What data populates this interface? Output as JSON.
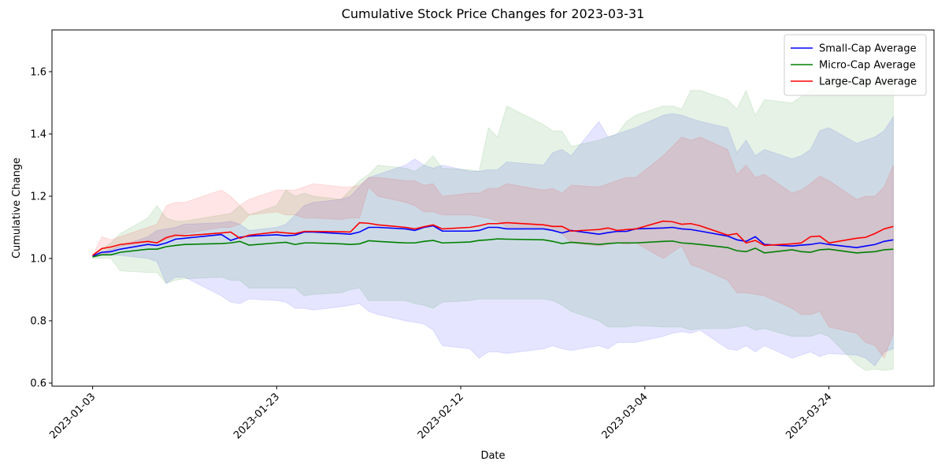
{
  "chart_data": {
    "type": "line",
    "title": "Cumulative Stock Price Changes for 2023-03-31",
    "xlabel": "Date",
    "ylabel": "Cumulative Change",
    "x": [
      "2023-01-03",
      "2023-01-04",
      "2023-01-05",
      "2023-01-06",
      "2023-01-09",
      "2023-01-10",
      "2023-01-11",
      "2023-01-12",
      "2023-01-13",
      "2023-01-17",
      "2023-01-18",
      "2023-01-19",
      "2023-01-20",
      "2023-01-23",
      "2023-01-24",
      "2023-01-25",
      "2023-01-26",
      "2023-01-27",
      "2023-01-30",
      "2023-01-31",
      "2023-02-01",
      "2023-02-02",
      "2023-02-03",
      "2023-02-06",
      "2023-02-07",
      "2023-02-08",
      "2023-02-09",
      "2023-02-10",
      "2023-02-13",
      "2023-02-14",
      "2023-02-15",
      "2023-02-16",
      "2023-02-17",
      "2023-02-21",
      "2023-02-22",
      "2023-02-23",
      "2023-02-24",
      "2023-02-27",
      "2023-02-28",
      "2023-03-01",
      "2023-03-02",
      "2023-03-03",
      "2023-03-06",
      "2023-03-07",
      "2023-03-08",
      "2023-03-09",
      "2023-03-10",
      "2023-03-13",
      "2023-03-14",
      "2023-03-15",
      "2023-03-16",
      "2023-03-17",
      "2023-03-20",
      "2023-03-21",
      "2023-03-22",
      "2023-03-23",
      "2023-03-24",
      "2023-03-27",
      "2023-03-28",
      "2023-03-29",
      "2023-03-30",
      "2023-03-31"
    ],
    "xlim": [
      "2022-12-29T14:00:00Z",
      "2023-04-04T10:00:00Z"
    ],
    "xticks": [
      "2023-01-03",
      "2023-01-23",
      "2023-02-12",
      "2023-03-04",
      "2023-03-24"
    ],
    "ylim": [
      0.59,
      1.734
    ],
    "yticks": [
      0.6,
      0.8,
      {
        "value": 1,
        "label": "1.0"
      },
      1.2,
      1.4,
      1.6
    ],
    "grid": false,
    "legend": "upper right",
    "series": [
      {
        "name": "Small-Cap Average",
        "color": "blue",
        "values": [
          1.008,
          1.02,
          1.022,
          1.03,
          1.045,
          1.042,
          1.05,
          1.062,
          1.065,
          1.077,
          1.058,
          1.068,
          1.072,
          1.076,
          1.073,
          1.075,
          1.085,
          1.085,
          1.08,
          1.078,
          1.085,
          1.1,
          1.1,
          1.095,
          1.09,
          1.1,
          1.105,
          1.088,
          1.088,
          1.09,
          1.1,
          1.1,
          1.095,
          1.095,
          1.09,
          1.082,
          1.09,
          1.078,
          1.083,
          1.087,
          1.087,
          1.095,
          1.098,
          1.1,
          1.095,
          1.093,
          1.088,
          1.072,
          1.06,
          1.055,
          1.07,
          1.045,
          1.04,
          1.043,
          1.045,
          1.05,
          1.045,
          1.035,
          1.04,
          1.045,
          1.055,
          1.06
        ],
        "upper": [
          1.01,
          1.02,
          1.03,
          1.04,
          1.07,
          1.09,
          1.095,
          1.1,
          1.11,
          1.115,
          1.12,
          1.11,
          1.09,
          1.1,
          1.11,
          1.14,
          1.17,
          1.18,
          1.19,
          1.2,
          1.23,
          1.26,
          1.27,
          1.3,
          1.32,
          1.3,
          1.29,
          1.3,
          1.28,
          1.28,
          1.285,
          1.285,
          1.31,
          1.3,
          1.34,
          1.35,
          1.33,
          1.44,
          1.39,
          1.4,
          1.41,
          1.42,
          1.46,
          1.465,
          1.46,
          1.45,
          1.44,
          1.42,
          1.34,
          1.38,
          1.33,
          1.35,
          1.32,
          1.33,
          1.35,
          1.41,
          1.42,
          1.37,
          1.38,
          1.39,
          1.41,
          1.455
        ],
        "lower": [
          1.005,
          1.01,
          1.01,
          1.01,
          1.0,
          0.99,
          0.92,
          0.94,
          0.94,
          0.88,
          0.86,
          0.855,
          0.87,
          0.865,
          0.86,
          0.84,
          0.84,
          0.835,
          0.845,
          0.85,
          0.855,
          0.83,
          0.82,
          0.8,
          0.795,
          0.79,
          0.77,
          0.72,
          0.71,
          0.68,
          0.7,
          0.7,
          0.695,
          0.71,
          0.72,
          0.71,
          0.705,
          0.72,
          0.71,
          0.73,
          0.73,
          0.73,
          0.75,
          0.76,
          0.765,
          0.76,
          0.77,
          0.71,
          0.705,
          0.72,
          0.7,
          0.72,
          0.68,
          0.69,
          0.7,
          0.685,
          0.695,
          0.69,
          0.68,
          0.655,
          0.7,
          0.71
        ]
      },
      {
        "name": "Micro-Cap Average",
        "color": "green",
        "values": [
          1.005,
          1.012,
          1.012,
          1.02,
          1.03,
          1.03,
          1.038,
          1.042,
          1.045,
          1.048,
          1.05,
          1.055,
          1.043,
          1.05,
          1.052,
          1.045,
          1.05,
          1.05,
          1.047,
          1.045,
          1.047,
          1.057,
          1.055,
          1.05,
          1.05,
          1.055,
          1.058,
          1.05,
          1.053,
          1.058,
          1.06,
          1.063,
          1.062,
          1.06,
          1.055,
          1.048,
          1.052,
          1.045,
          1.048,
          1.05,
          1.05,
          1.05,
          1.055,
          1.056,
          1.05,
          1.048,
          1.045,
          1.035,
          1.025,
          1.022,
          1.033,
          1.018,
          1.028,
          1.022,
          1.02,
          1.028,
          1.03,
          1.018,
          1.02,
          1.022,
          1.028,
          1.03
        ],
        "upper": [
          1.01,
          1.03,
          1.05,
          1.08,
          1.13,
          1.17,
          1.13,
          1.12,
          1.12,
          1.14,
          1.145,
          1.17,
          1.14,
          1.17,
          1.22,
          1.2,
          1.21,
          1.2,
          1.19,
          1.22,
          1.25,
          1.27,
          1.3,
          1.29,
          1.28,
          1.3,
          1.33,
          1.29,
          1.285,
          1.28,
          1.42,
          1.39,
          1.49,
          1.43,
          1.41,
          1.41,
          1.36,
          1.38,
          1.39,
          1.4,
          1.44,
          1.46,
          1.49,
          1.49,
          1.48,
          1.54,
          1.54,
          1.51,
          1.48,
          1.54,
          1.46,
          1.51,
          1.5,
          1.52,
          1.54,
          1.56,
          1.57,
          1.58,
          1.58,
          1.58,
          1.58,
          1.58
        ],
        "lower": [
          1.0,
          1.0,
          1.0,
          0.96,
          0.955,
          0.955,
          0.92,
          0.93,
          0.935,
          0.94,
          0.93,
          0.93,
          0.905,
          0.905,
          0.905,
          0.905,
          0.88,
          0.885,
          0.89,
          0.9,
          0.905,
          0.865,
          0.865,
          0.865,
          0.855,
          0.85,
          0.84,
          0.86,
          0.865,
          0.87,
          0.87,
          0.87,
          0.87,
          0.87,
          0.865,
          0.85,
          0.83,
          0.8,
          0.78,
          0.78,
          0.78,
          0.785,
          0.78,
          0.78,
          0.78,
          0.77,
          0.775,
          0.775,
          0.78,
          0.785,
          0.77,
          0.775,
          0.75,
          0.75,
          0.75,
          0.76,
          0.75,
          0.66,
          0.64,
          0.645,
          0.64,
          0.645
        ]
      },
      {
        "name": "Large-Cap Average",
        "color": "red",
        "values": [
          1.01,
          1.032,
          1.037,
          1.045,
          1.055,
          1.05,
          1.067,
          1.075,
          1.073,
          1.082,
          1.085,
          1.065,
          1.075,
          1.085,
          1.082,
          1.08,
          1.087,
          1.087,
          1.086,
          1.085,
          1.115,
          1.113,
          1.108,
          1.1,
          1.095,
          1.102,
          1.108,
          1.095,
          1.1,
          1.105,
          1.112,
          1.112,
          1.115,
          1.108,
          1.103,
          1.103,
          1.088,
          1.093,
          1.098,
          1.09,
          1.093,
          1.095,
          1.12,
          1.118,
          1.11,
          1.112,
          1.105,
          1.075,
          1.08,
          1.05,
          1.058,
          1.042,
          1.047,
          1.05,
          1.07,
          1.072,
          1.05,
          1.065,
          1.068,
          1.08,
          1.095,
          1.103
        ],
        "upper": [
          1.01,
          1.07,
          1.06,
          1.07,
          1.1,
          1.11,
          1.17,
          1.18,
          1.18,
          1.22,
          1.2,
          1.17,
          1.19,
          1.22,
          1.22,
          1.22,
          1.23,
          1.24,
          1.23,
          1.23,
          1.235,
          1.26,
          1.26,
          1.25,
          1.25,
          1.235,
          1.24,
          1.2,
          1.21,
          1.21,
          1.225,
          1.225,
          1.24,
          1.22,
          1.225,
          1.21,
          1.235,
          1.23,
          1.24,
          1.25,
          1.26,
          1.26,
          1.33,
          1.36,
          1.39,
          1.38,
          1.39,
          1.35,
          1.27,
          1.3,
          1.26,
          1.27,
          1.21,
          1.22,
          1.24,
          1.265,
          1.25,
          1.19,
          1.2,
          1.2,
          1.23,
          1.3
        ],
        "lower": [
          1.005,
          1.01,
          1.02,
          1.04,
          1.05,
          1.05,
          1.06,
          1.07,
          1.08,
          1.1,
          1.1,
          1.11,
          1.14,
          1.15,
          1.14,
          1.14,
          1.13,
          1.13,
          1.125,
          1.13,
          1.13,
          1.23,
          1.2,
          1.18,
          1.17,
          1.15,
          1.15,
          1.14,
          1.14,
          1.135,
          1.13,
          1.12,
          1.1,
          1.1,
          1.09,
          1.08,
          1.05,
          1.04,
          1.045,
          1.05,
          1.045,
          1.05,
          1.0,
          1.02,
          1.04,
          0.98,
          0.97,
          0.93,
          0.89,
          0.89,
          0.885,
          0.88,
          0.84,
          0.82,
          0.82,
          0.83,
          0.78,
          0.76,
          0.73,
          0.72,
          0.68,
          0.76
        ]
      }
    ]
  }
}
